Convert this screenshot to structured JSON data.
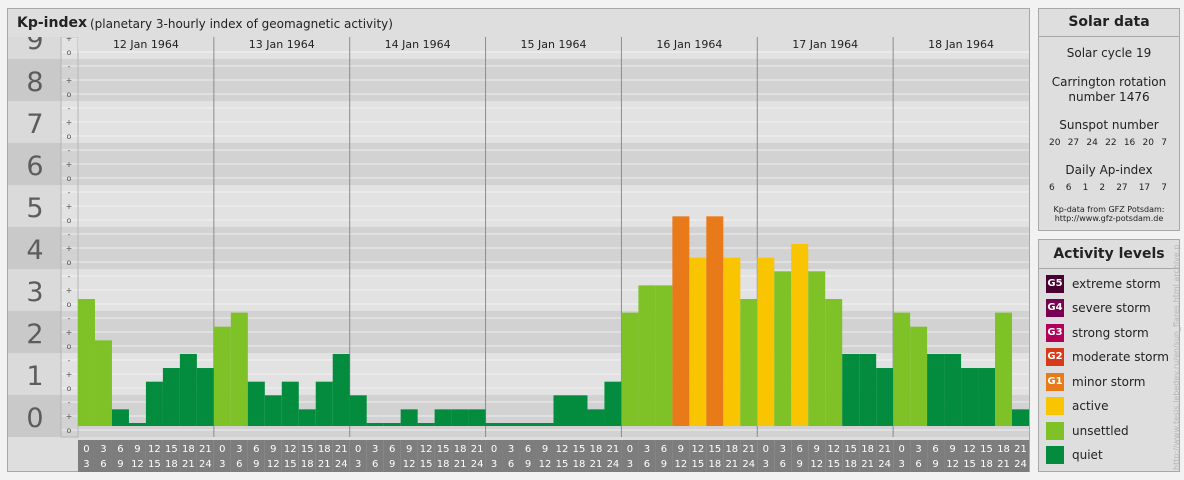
{
  "header": {
    "title": "Kp-index",
    "subtitle": "(planetary 3-hourly index of geomagnetic activity)"
  },
  "chart_data": {
    "type": "bar",
    "title": "Kp-index",
    "subtitle": "(planetary 3-hourly index of geomagnetic activity)",
    "ylim": [
      0,
      9
    ],
    "y_ticks": [
      "0",
      "1",
      "2",
      "3",
      "4",
      "5",
      "6",
      "7",
      "8",
      "9"
    ],
    "y_minor_ticks": [
      "o",
      "+",
      "-"
    ],
    "days": [
      "12 Jan 1964",
      "13 Jan 1964",
      "14 Jan 1964",
      "15 Jan 1964",
      "16 Jan 1964",
      "17 Jan 1964",
      "18 Jan 1964"
    ],
    "intervals": [
      [
        "0",
        "3"
      ],
      [
        "3",
        "6"
      ],
      [
        "6",
        "9"
      ],
      [
        "9",
        "12"
      ],
      [
        "12",
        "15"
      ],
      [
        "15",
        "18"
      ],
      [
        "18",
        "21"
      ],
      [
        "21",
        "24"
      ]
    ],
    "values": [
      3.0,
      2.0,
      0.33,
      0.0,
      1.0,
      1.33,
      1.67,
      1.33,
      2.33,
      2.67,
      1.0,
      0.67,
      1.0,
      0.33,
      1.0,
      1.67,
      0.67,
      0.0,
      0.0,
      0.33,
      0.0,
      0.33,
      0.33,
      0.33,
      0.0,
      0.0,
      0.0,
      0.0,
      0.67,
      0.67,
      0.33,
      1.0,
      2.67,
      3.33,
      3.33,
      5.0,
      4.0,
      5.0,
      4.0,
      3.0,
      4.0,
      3.67,
      4.33,
      3.67,
      3.0,
      1.67,
      1.67,
      1.33,
      2.67,
      2.33,
      1.67,
      1.67,
      1.33,
      1.33,
      2.67,
      0.33
    ]
  },
  "solar": {
    "title": "Solar data",
    "cycle": "Solar cycle 19",
    "carrington_line1": "Carrington rotation",
    "carrington_line2": "number 1476",
    "sunspot_label": "Sunspot number",
    "sunspot_values": [
      "20",
      "27",
      "24",
      "22",
      "16",
      "20",
      "7"
    ],
    "ap_label": "Daily Ap-index",
    "ap_values": [
      "6",
      "6",
      "1",
      "2",
      "27",
      "17",
      "7"
    ],
    "source_line1": "Kp-data from GFZ Potsdam:",
    "source_line2": "http://www.gfz-potsdam.de"
  },
  "levels": {
    "title": "Activity levels",
    "items": [
      {
        "code": "G5",
        "label": "extreme storm",
        "color": "#4a0030"
      },
      {
        "code": "G4",
        "label": "severe storm",
        "color": "#780050"
      },
      {
        "code": "G3",
        "label": "strong storm",
        "color": "#b0005a"
      },
      {
        "code": "G2",
        "label": "moderate storm",
        "color": "#d63a18"
      },
      {
        "code": "G1",
        "label": "minor storm",
        "color": "#e87a1a"
      },
      {
        "code": "",
        "label": "active",
        "color": "#f9c400"
      },
      {
        "code": "",
        "label": "unsettled",
        "color": "#7ec228"
      },
      {
        "code": "",
        "label": "quiet",
        "color": "#038c3e"
      }
    ]
  },
  "colors": {
    "quiet": "#038c3e",
    "unsettled": "#7ec228",
    "active": "#f9c400",
    "minor": "#e87a1a"
  },
  "credit": "http://www.tesis.lebedev.ru/en/sun_flares.html archive.php"
}
